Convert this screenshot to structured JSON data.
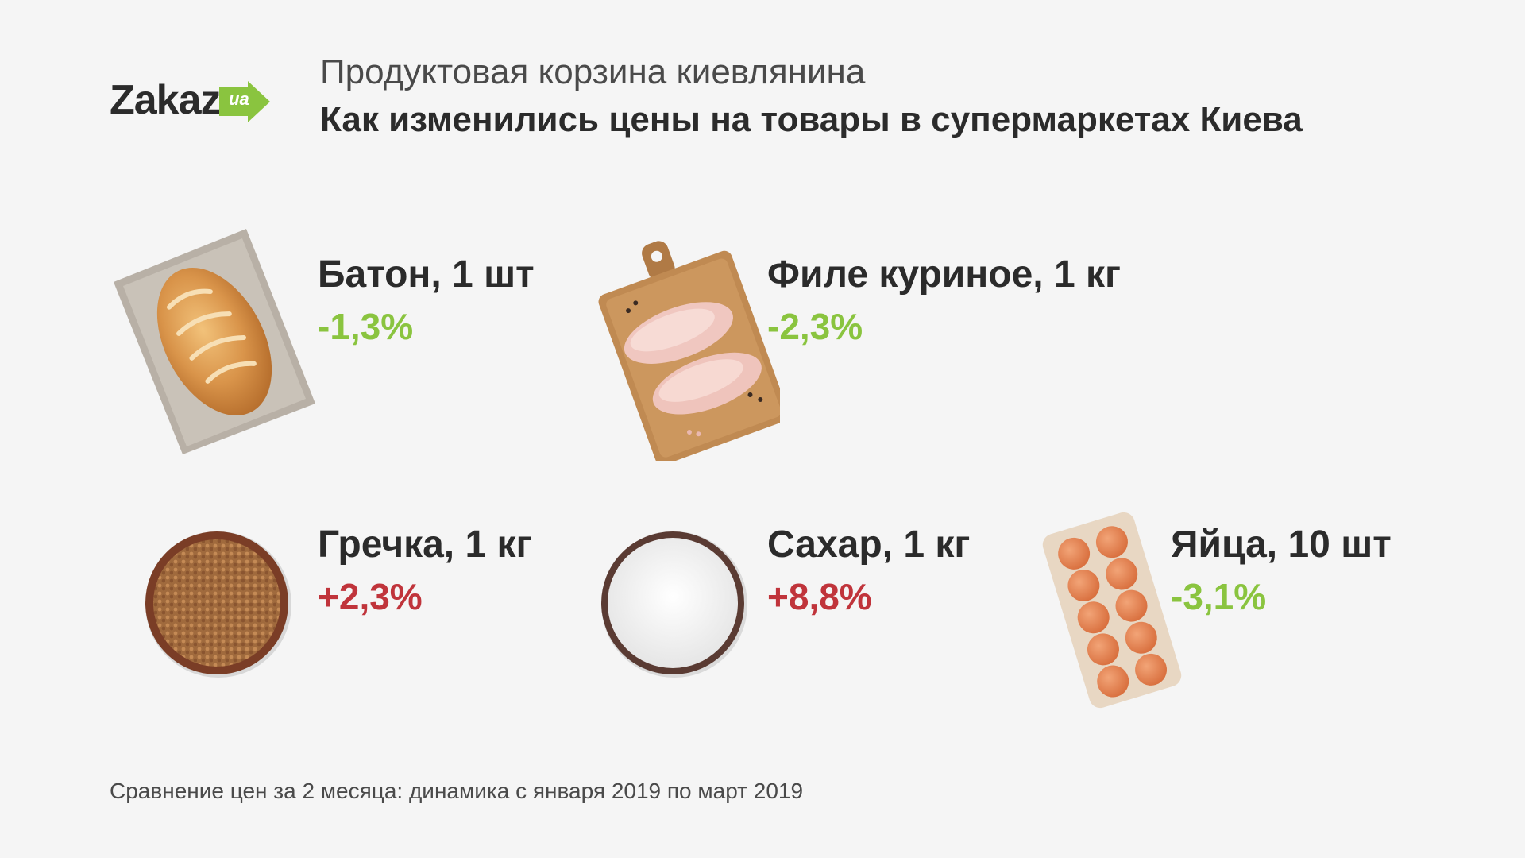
{
  "logo": {
    "brand": "Zakaz",
    "suffix": "ua",
    "accent": "#8ac43f"
  },
  "header": {
    "subtitle": "Продуктовая корзина киевлянина",
    "title": "Как изменились цены на товары в супермаркетах Киева"
  },
  "items": [
    {
      "name": "Батон, 1 шт",
      "change": "-1,3%",
      "trend": "down",
      "icon": "bread-icon"
    },
    {
      "name": "Филе куриное, 1 кг",
      "change": "-2,3%",
      "trend": "down",
      "icon": "chicken-fillet-icon"
    },
    {
      "name": "Гречка, 1 кг",
      "change": "+2,3%",
      "trend": "up",
      "icon": "buckwheat-icon"
    },
    {
      "name": "Сахар, 1 кг",
      "change": "+8,8%",
      "trend": "up",
      "icon": "sugar-icon"
    },
    {
      "name": "Яйца, 10 шт",
      "change": "-3,1%",
      "trend": "down",
      "icon": "eggs-icon"
    }
  ],
  "colors": {
    "decrease": "#8ac43f",
    "increase": "#c0343b"
  },
  "footnote": "Сравнение цен за 2 месяца: динамика с января 2019 по март 2019"
}
